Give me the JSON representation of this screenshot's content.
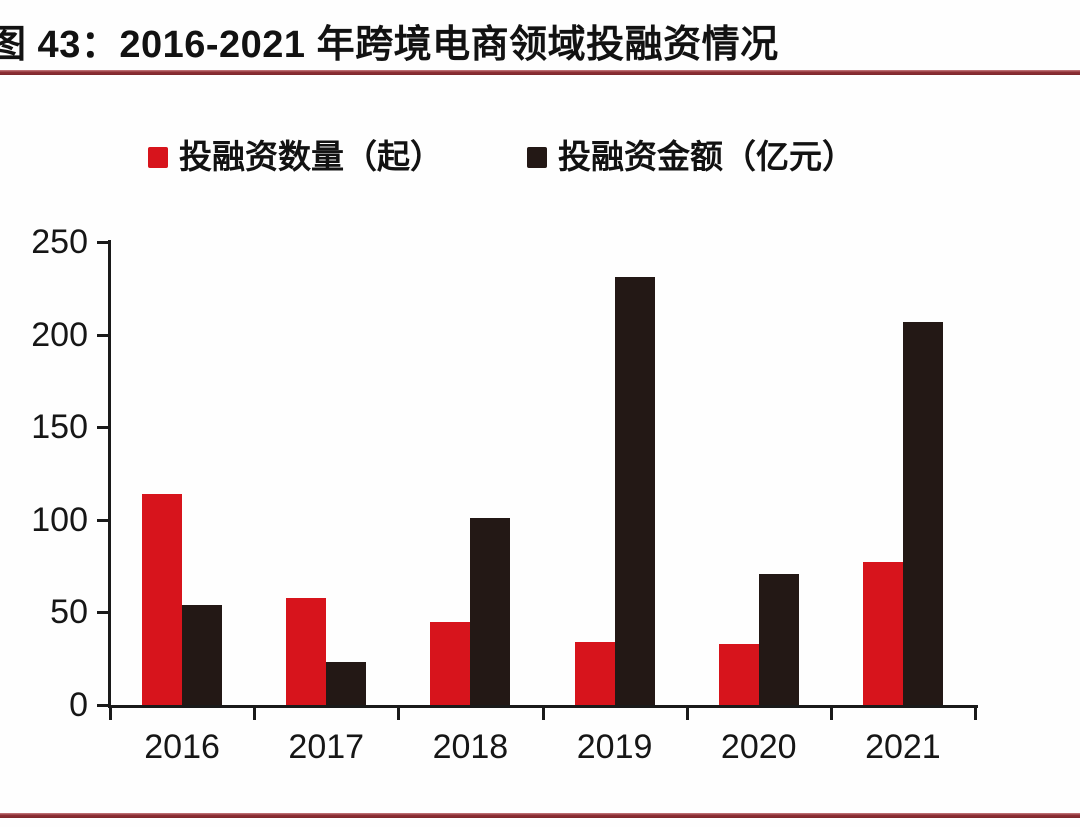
{
  "title": "图 43：2016-2021 年跨境电商领域投融资情况",
  "theme": {
    "accent_red": "#d7141c",
    "bar_black": "#231815",
    "rule_color": "#8e2f35",
    "axis_color": "#1a1a1a",
    "background": "#fefefe"
  },
  "chart_data": {
    "type": "bar",
    "title": "图 43：2016-2021 年跨境电商领域投融资情况",
    "categories": [
      "2016",
      "2017",
      "2018",
      "2019",
      "2020",
      "2021"
    ],
    "series": [
      {
        "name": "投融资数量（起）",
        "key": "count",
        "color": "#d7141c",
        "values": [
          114,
          58,
          45,
          34,
          33,
          77
        ]
      },
      {
        "name": "投融资金额（亿元）",
        "key": "amount",
        "color": "#231815",
        "values": [
          54,
          23,
          101,
          231,
          71,
          207
        ]
      }
    ],
    "xlabel": "",
    "ylabel": "",
    "ylim": [
      0,
      250
    ],
    "yticks": [
      0,
      50,
      100,
      150,
      200,
      250
    ],
    "grid": false,
    "legend_position": "top"
  }
}
